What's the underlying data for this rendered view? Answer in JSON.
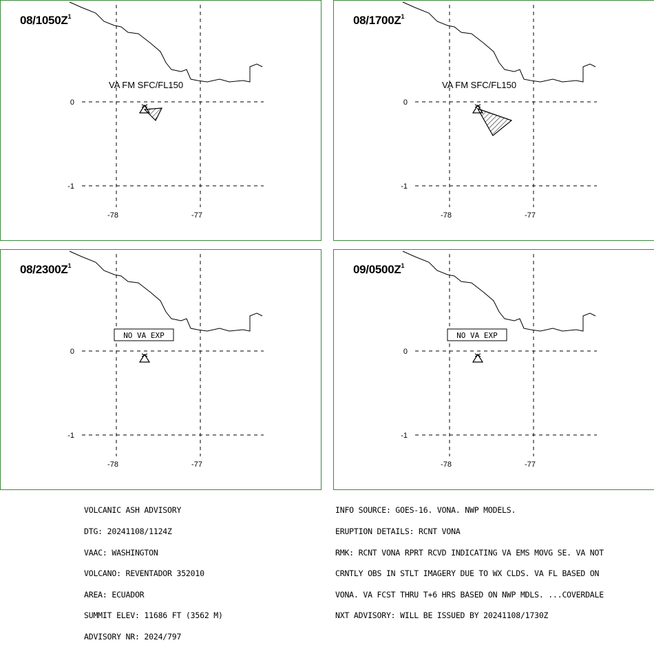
{
  "panels": [
    {
      "time": "08/1050Z",
      "sup": "1",
      "label": "VA FM SFC/FL150",
      "label_boxed": false,
      "plume": "small"
    },
    {
      "time": "08/1700Z",
      "sup": "1",
      "label": "VA FM SFC/FL150",
      "label_boxed": false,
      "plume": "large"
    },
    {
      "time": "08/2300Z",
      "sup": "1",
      "label": "NO VA EXP",
      "label_boxed": true,
      "plume": "none"
    },
    {
      "time": "09/0500Z",
      "sup": "1",
      "label": "NO VA EXP",
      "label_boxed": true,
      "plume": "none"
    }
  ],
  "axes": {
    "lat_labels": [
      "0",
      "-1"
    ],
    "lon_labels": [
      "-78",
      "-77"
    ]
  },
  "advisory_left": [
    "VOLCANIC ASH ADVISORY",
    "DTG: 20241108/1124Z",
    "VAAC: WASHINGTON",
    "VOLCANO: REVENTADOR 352010",
    "AREA: ECUADOR",
    "SUMMIT ELEV: 11686 FT (3562 M)",
    "ADVISORY NR: 2024/797"
  ],
  "advisory_right": [
    "INFO SOURCE: GOES-16. VONA. NWP MODELS.",
    "ERUPTION DETAILS: RCNT VONA",
    "RMK: RCNT VONA RPRT RCVD INDICATING VA EMS MOVG SE. VA NOT",
    "CRNTLY OBS IN STLT IMAGERY DUE TO WX CLDS. VA FL BASED ON",
    "VONA. VA FCST THRU T+6 HRS BASED ON NWP MDLS. ...COVERDALE",
    "NXT ADVISORY: WILL BE ISSUED BY 20241108/1730Z"
  ],
  "colors": {
    "border": "#3a8a3a",
    "ink": "#000000",
    "background": "#ffffff"
  },
  "icons": {
    "volcano": "triangle-volcano-icon"
  }
}
